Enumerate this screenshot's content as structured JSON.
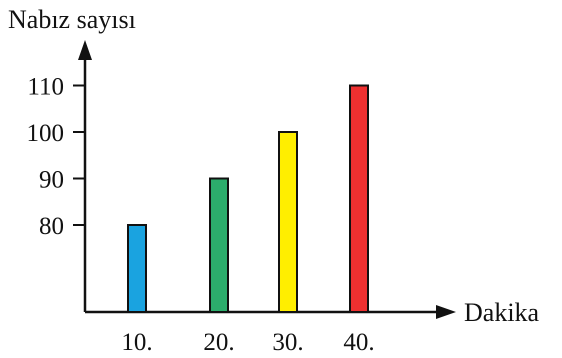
{
  "chart_data": {
    "type": "bar",
    "title": "",
    "ylabel": "Nabız sayısı",
    "xlabel": "Dakika",
    "categories": [
      "10.",
      "20.",
      "30.",
      "40."
    ],
    "values": [
      80,
      90,
      100,
      110
    ],
    "bar_colors": [
      "#1aa3e0",
      "#2cad6c",
      "#ffee00",
      "#ee3030"
    ],
    "yticks": [
      80,
      90,
      100,
      110
    ],
    "grid": false,
    "legend": "none"
  }
}
